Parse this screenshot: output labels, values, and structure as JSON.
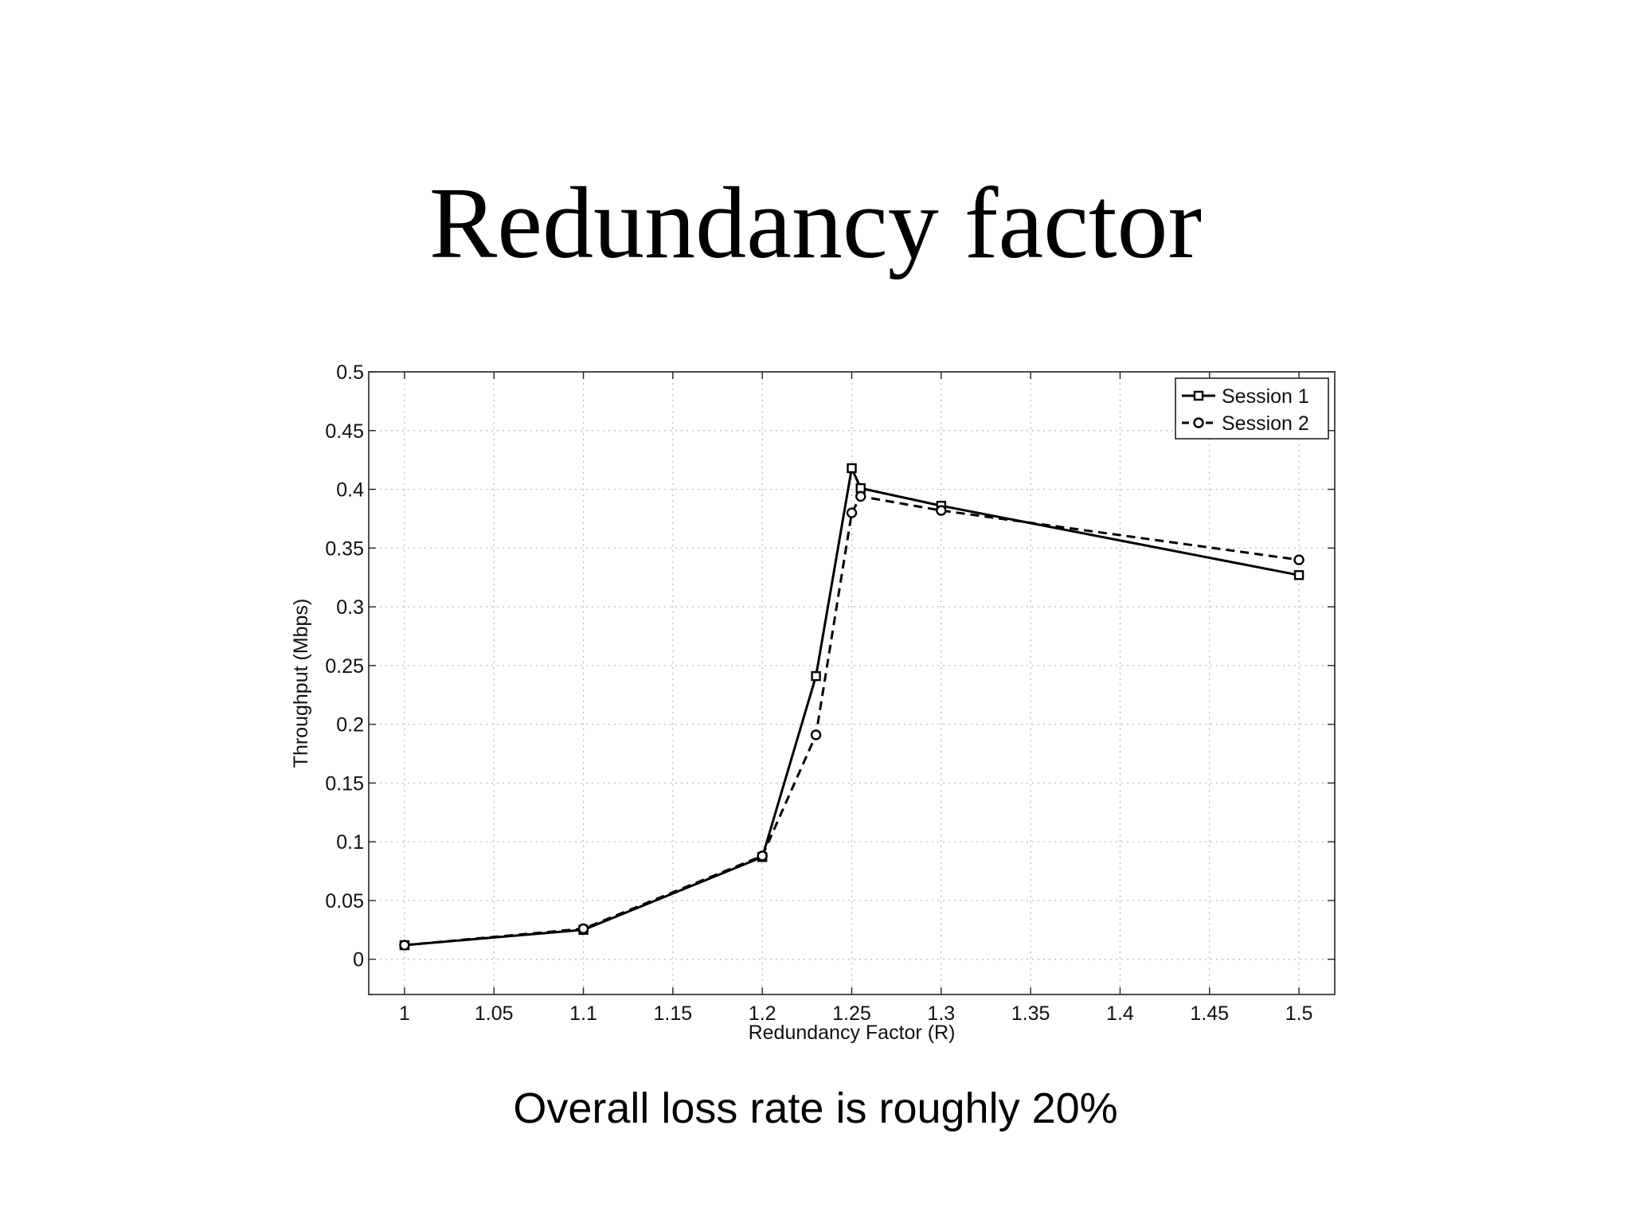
{
  "slide": {
    "title": "Redundancy factor",
    "caption": "Overall loss rate is roughly 20%"
  },
  "chart_data": {
    "type": "line",
    "title": "",
    "xlabel": "Redundancy Factor (R)",
    "ylabel": "Throughput (Mbps)",
    "xlim": [
      0.98,
      1.52
    ],
    "ylim": [
      -0.03,
      0.5
    ],
    "x_ticks": [
      1,
      1.05,
      1.1,
      1.15,
      1.2,
      1.25,
      1.3,
      1.35,
      1.4,
      1.45,
      1.5
    ],
    "x_tick_labels": [
      "1",
      "1.05",
      "1.1",
      "1.15",
      "1.2",
      "1.25",
      "1.3",
      "1.35",
      "1.4",
      "1.45",
      "1.5"
    ],
    "y_ticks": [
      0,
      0.05,
      0.1,
      0.15,
      0.2,
      0.25,
      0.3,
      0.35,
      0.4,
      0.45,
      0.5
    ],
    "y_tick_labels": [
      "0",
      "0.05",
      "0.1",
      "0.15",
      "0.2",
      "0.25",
      "0.3",
      "0.35",
      "0.4",
      "0.45",
      "0.5"
    ],
    "grid": true,
    "legend_position": "top-right",
    "line_color": "#000000",
    "series": [
      {
        "name": "Session 1",
        "line_style": "solid",
        "marker": "square",
        "x": [
          1,
          1.1,
          1.2,
          1.23,
          1.25,
          1.255,
          1.3,
          1.5
        ],
        "y": [
          0.012,
          0.025,
          0.087,
          0.241,
          0.418,
          0.401,
          0.386,
          0.327
        ]
      },
      {
        "name": "Session 2",
        "line_style": "dashed",
        "marker": "circle",
        "x": [
          1,
          1.1,
          1.2,
          1.23,
          1.25,
          1.255,
          1.3,
          1.5
        ],
        "y": [
          0.012,
          0.026,
          0.088,
          0.191,
          0.38,
          0.394,
          0.382,
          0.34
        ]
      }
    ]
  }
}
